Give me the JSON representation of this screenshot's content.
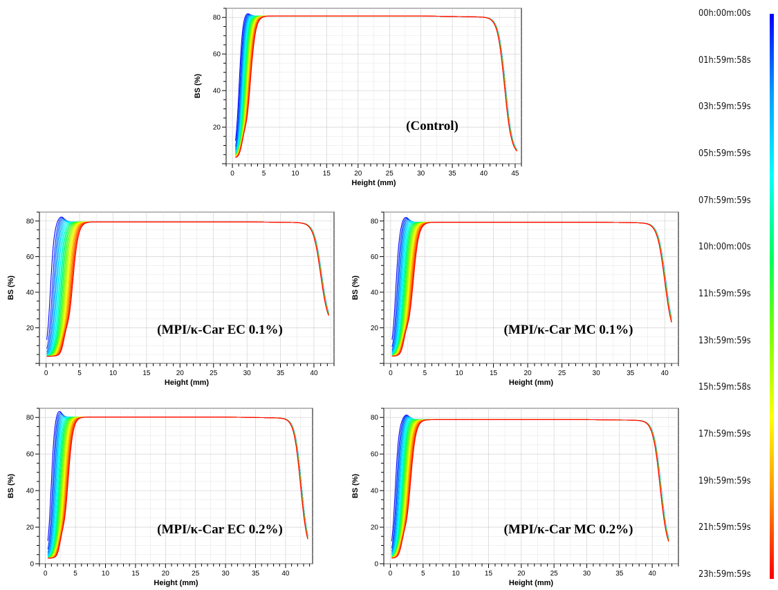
{
  "chart_data": [
    {
      "type": "line",
      "id": "control",
      "annotation": "(Control)",
      "xlabel": "Height (mm)",
      "ylabel": "BS (%)",
      "xlim": [
        -1,
        46
      ],
      "ylim": [
        0,
        85
      ],
      "xticks": [
        0,
        5,
        10,
        15,
        20,
        25,
        30,
        35,
        40,
        45
      ],
      "yticks": [
        20,
        40,
        60,
        80
      ],
      "grid": true,
      "profile": {
        "plateau": 80.8,
        "peak_height_mm": 2.2,
        "peak_bs": 82.8,
        "rise_start_mm": 0.5,
        "start_bs": 3,
        "late_rise_midpoint_mm": 2.8,
        "end_height_mm": 45.3,
        "end_bs": 5,
        "drop_midpoint_mm": 43.3
      }
    },
    {
      "type": "line",
      "id": "ec01",
      "annotation": "(MPI/κ-Car EC 0.1%)",
      "xlabel": "Height (mm)",
      "ylabel": "BS (%)",
      "xlim": [
        -1,
        43
      ],
      "ylim": [
        0,
        85
      ],
      "xticks": [
        0,
        5,
        10,
        15,
        20,
        25,
        30,
        35,
        40
      ],
      "yticks": [
        20,
        40,
        60,
        80
      ],
      "grid": true,
      "profile": {
        "plateau": 79.5,
        "peak_height_mm": 2.2,
        "peak_bs": 82.5,
        "rise_start_mm": 0.1,
        "start_bs": 4,
        "late_rise_midpoint_mm": 3.9,
        "end_height_mm": 42.2,
        "end_bs": 21,
        "drop_midpoint_mm": 41.0
      }
    },
    {
      "type": "line",
      "id": "mc01",
      "annotation": "(MPI/κ-Car MC 0.1%)",
      "xlabel": "Height (mm)",
      "ylabel": "BS (%)",
      "xlim": [
        -1,
        42
      ],
      "ylim": [
        0,
        85
      ],
      "xticks": [
        0,
        5,
        10,
        15,
        20,
        25,
        30,
        35,
        40
      ],
      "yticks": [
        20,
        40,
        60,
        80
      ],
      "grid": true,
      "profile": {
        "plateau": 79.3,
        "peak_height_mm": 2.1,
        "peak_bs": 82.5,
        "rise_start_mm": 0.2,
        "start_bs": 4,
        "late_rise_midpoint_mm": 3.2,
        "end_height_mm": 41.0,
        "end_bs": 14,
        "drop_midpoint_mm": 40.0
      }
    },
    {
      "type": "line",
      "id": "ec02",
      "annotation": "(MPI/κ-Car EC 0.2%)",
      "xlabel": "Height (mm)",
      "ylabel": "BS (%)",
      "xlim": [
        -1,
        44.5
      ],
      "ylim": [
        0,
        85
      ],
      "xticks": [
        0,
        5,
        10,
        15,
        20,
        25,
        30,
        35,
        40
      ],
      "yticks": [
        0,
        20,
        40,
        60,
        80
      ],
      "grid": true,
      "profile": {
        "plateau": 80.2,
        "peak_height_mm": 2.2,
        "peak_bs": 84,
        "rise_start_mm": 0.4,
        "start_bs": 3,
        "late_rise_midpoint_mm": 3.7,
        "end_height_mm": 43.7,
        "end_bs": 6,
        "drop_midpoint_mm": 42.5
      }
    },
    {
      "type": "line",
      "id": "mc02",
      "annotation": "(MPI/κ-Car MC 0.2%)",
      "xlabel": "Height (mm)",
      "ylabel": "BS (%)",
      "xlim": [
        -1,
        44
      ],
      "ylim": [
        0,
        85
      ],
      "xticks": [
        0,
        5,
        10,
        15,
        20,
        25,
        30,
        35,
        40
      ],
      "yticks": [
        0,
        20,
        40,
        60,
        80
      ],
      "grid": true,
      "profile": {
        "plateau": 78.8,
        "peak_height_mm": 2.4,
        "peak_bs": 81.5,
        "rise_start_mm": 0.2,
        "start_bs": 3,
        "late_rise_midpoint_mm": 3.0,
        "end_height_mm": 42.5,
        "end_bs": 6,
        "drop_midpoint_mm": 41.2
      }
    }
  ],
  "time_legend": {
    "labels": [
      "00h:00m:00s",
      "01h:59m:58s",
      "03h:59m:59s",
      "05h:59m:59s",
      "07h:59m:59s",
      "10h:00m:00s",
      "11h:59m:59s",
      "13h:59m:59s",
      "15h:59m:58s",
      "17h:59m:59s",
      "19h:59m:59s",
      "21h:59m:59s",
      "23h:59m:59s"
    ],
    "color_scale": [
      "#0000ff",
      "#00a0ff",
      "#00ffff",
      "#00ff60",
      "#80ff00",
      "#ffff00",
      "#ff9000",
      "#ff0000"
    ]
  },
  "series_count": 24
}
